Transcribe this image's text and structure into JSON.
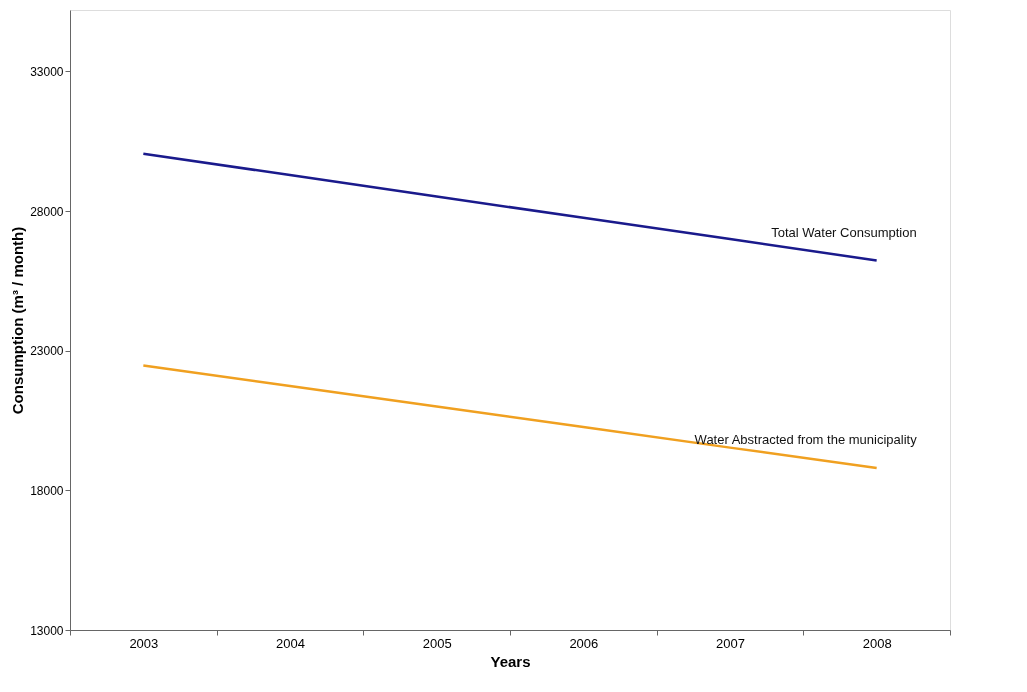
{
  "chart_data": {
    "type": "line",
    "xlabel": "Years",
    "ylabel": "Consumption (m³ / month)",
    "categories": [
      "2003",
      "2004",
      "2005",
      "2006",
      "2007",
      "2008"
    ],
    "series": [
      {
        "name": "Total Water Consumption",
        "color": "#1a1a8c",
        "values": [
          30050,
          29290,
          28520,
          27760,
          27000,
          26230
        ]
      },
      {
        "name": "Water Abstracted from the municipality",
        "color": "#f0a020",
        "values": [
          22470,
          21740,
          21000,
          20270,
          19530,
          18800
        ]
      }
    ],
    "ylim": [
      13000,
      35200
    ],
    "yticks": [
      13000,
      18000,
      23000,
      28000,
      33000
    ],
    "grid": false,
    "marker": "none",
    "line_style": "solid"
  }
}
